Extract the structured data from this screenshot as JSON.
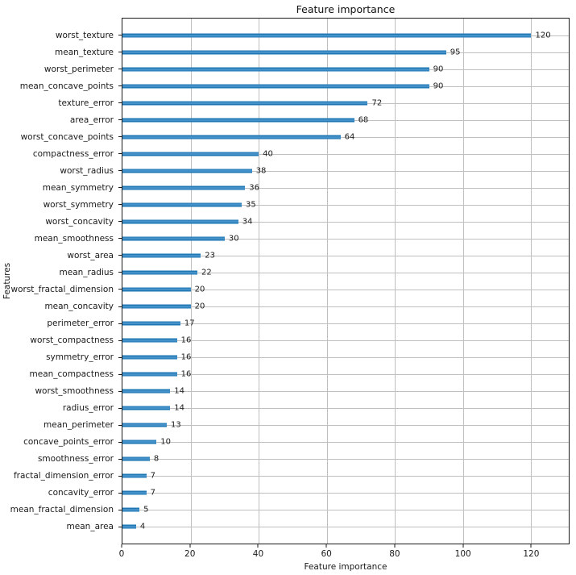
{
  "chart_data": {
    "type": "bar",
    "orientation": "horizontal",
    "title": "Feature importance",
    "xlabel": "Feature importance",
    "ylabel": "Features",
    "categories": [
      "worst_texture",
      "mean_texture",
      "worst_perimeter",
      "mean_concave_points",
      "texture_error",
      "area_error",
      "worst_concave_points",
      "compactness_error",
      "worst_radius",
      "mean_symmetry",
      "worst_symmetry",
      "worst_concavity",
      "mean_smoothness",
      "worst_area",
      "mean_radius",
      "worst_fractal_dimension",
      "mean_concavity",
      "perimeter_error",
      "worst_compactness",
      "symmetry_error",
      "mean_compactness",
      "worst_smoothness",
      "radius_error",
      "mean_perimeter",
      "concave_points_error",
      "smoothness_error",
      "fractal_dimension_error",
      "concavity_error",
      "mean_fractal_dimension",
      "mean_area"
    ],
    "values": [
      120,
      95,
      90,
      90,
      72,
      68,
      64,
      40,
      38,
      36,
      35,
      34,
      30,
      23,
      22,
      20,
      20,
      17,
      16,
      16,
      16,
      14,
      14,
      13,
      10,
      8,
      7,
      7,
      5,
      4
    ],
    "x_ticks": [
      0,
      20,
      40,
      60,
      80,
      100,
      120
    ],
    "xlim": [
      0,
      131
    ],
    "grid": true,
    "legend": "none",
    "bar_color": "#1f77b4",
    "bar_color_light": "#4490c8",
    "grid_color": "#c0c0c0",
    "axis_color": "#1a1a1a"
  }
}
